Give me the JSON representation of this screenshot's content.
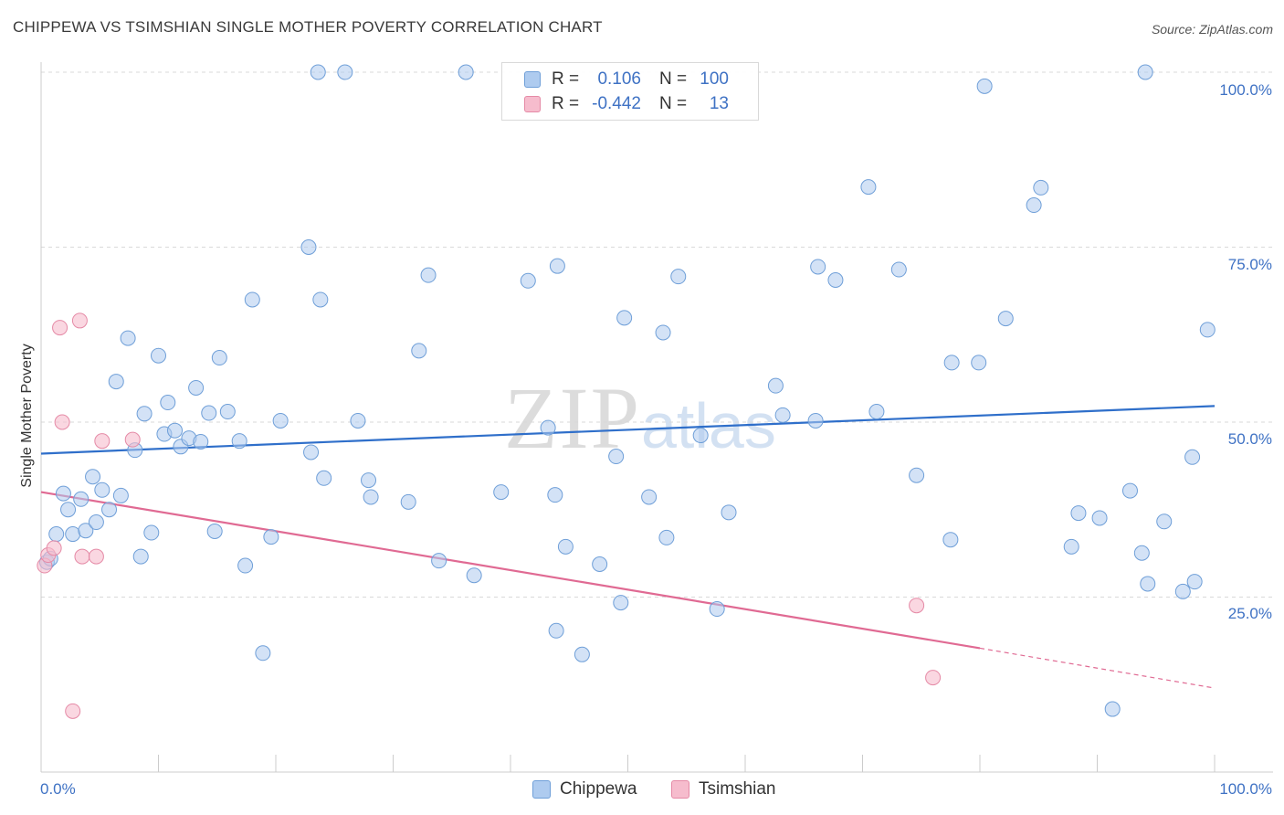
{
  "header": {
    "title": "CHIPPEWA VS TSIMSHIAN SINGLE MOTHER POVERTY CORRELATION CHART",
    "source": "Source: ZipAtlas.com"
  },
  "watermark": {
    "zip": "ZIP",
    "atlas": "atlas"
  },
  "legend": {
    "rows": [
      {
        "r_label": "R =",
        "r_value": "0.106",
        "n_label": "N =",
        "n_value": "100"
      },
      {
        "r_label": "R =",
        "r_value": "-0.442",
        "n_label": "N =",
        "n_value": "13"
      }
    ]
  },
  "bottom_legend": {
    "series_a": "Chippewa",
    "series_b": "Tsimshian"
  },
  "colors": {
    "chippewa_fill": "#aecbef",
    "chippewa_stroke": "#6f9fd8",
    "chippewa_line": "#2f6fca",
    "tsimshian_fill": "#f6bccd",
    "tsimshian_stroke": "#e58aa6",
    "tsimshian_line": "#e06a93",
    "grid": "#d9d9d9",
    "tick_label": "#3f72c4"
  },
  "chart_data": {
    "type": "scatter",
    "title": "CHIPPEWA VS TSIMSHIAN SINGLE MOTHER POVERTY CORRELATION CHART",
    "xlabel": "",
    "ylabel": "Single Mother Poverty",
    "xlim": [
      0,
      100
    ],
    "ylim": [
      0,
      100
    ],
    "x_tick_labels": [
      "0.0%",
      "100.0%"
    ],
    "y_tick_labels": [
      "25.0%",
      "50.0%",
      "75.0%",
      "100.0%"
    ],
    "grid": true,
    "legend_position": "top-center",
    "series": [
      {
        "name": "Chippewa",
        "r": 0.106,
        "n": 100,
        "trend": {
          "x": [
            0,
            100
          ],
          "y": [
            45.5,
            52.3
          ]
        },
        "points": [
          [
            0.5,
            30.0
          ],
          [
            0.8,
            30.5
          ],
          [
            1.3,
            34.0
          ],
          [
            1.9,
            39.8
          ],
          [
            2.3,
            37.5
          ],
          [
            2.7,
            34.0
          ],
          [
            3.4,
            39.0
          ],
          [
            3.8,
            34.5
          ],
          [
            4.4,
            42.2
          ],
          [
            4.7,
            35.7
          ],
          [
            5.2,
            40.3
          ],
          [
            5.8,
            37.5
          ],
          [
            6.4,
            55.8
          ],
          [
            6.8,
            39.5
          ],
          [
            7.4,
            62.0
          ],
          [
            8.0,
            46.0
          ],
          [
            8.5,
            30.8
          ],
          [
            8.8,
            51.2
          ],
          [
            9.4,
            34.2
          ],
          [
            10.0,
            59.5
          ],
          [
            10.5,
            48.3
          ],
          [
            10.8,
            52.8
          ],
          [
            11.4,
            48.8
          ],
          [
            11.9,
            46.5
          ],
          [
            12.6,
            47.7
          ],
          [
            13.2,
            54.9
          ],
          [
            13.6,
            47.2
          ],
          [
            14.3,
            51.3
          ],
          [
            14.8,
            34.4
          ],
          [
            15.2,
            59.2
          ],
          [
            15.9,
            51.5
          ],
          [
            16.9,
            47.3
          ],
          [
            17.4,
            29.5
          ],
          [
            18.0,
            67.5
          ],
          [
            18.9,
            17.0
          ],
          [
            19.6,
            33.6
          ],
          [
            20.4,
            50.2
          ],
          [
            22.8,
            75.0
          ],
          [
            23.0,
            45.7
          ],
          [
            23.6,
            100.0
          ],
          [
            23.8,
            67.5
          ],
          [
            24.1,
            42.0
          ],
          [
            25.9,
            100.0
          ],
          [
            27.0,
            50.2
          ],
          [
            27.9,
            41.7
          ],
          [
            28.1,
            39.3
          ],
          [
            31.3,
            38.6
          ],
          [
            32.2,
            60.2
          ],
          [
            33.0,
            71.0
          ],
          [
            33.9,
            30.2
          ],
          [
            36.9,
            28.1
          ],
          [
            36.2,
            100.0
          ],
          [
            39.2,
            40.0
          ],
          [
            41.5,
            70.2
          ],
          [
            43.2,
            49.2
          ],
          [
            43.8,
            39.6
          ],
          [
            44.0,
            72.3
          ],
          [
            43.9,
            20.2
          ],
          [
            44.7,
            32.2
          ],
          [
            46.1,
            16.8
          ],
          [
            47.6,
            29.7
          ],
          [
            49.0,
            45.1
          ],
          [
            49.7,
            64.9
          ],
          [
            49.4,
            24.2
          ],
          [
            51.8,
            39.3
          ],
          [
            53.0,
            62.8
          ],
          [
            53.3,
            33.5
          ],
          [
            54.3,
            70.8
          ],
          [
            56.2,
            48.1
          ],
          [
            57.6,
            23.3
          ],
          [
            58.6,
            37.1
          ],
          [
            62.6,
            55.2
          ],
          [
            63.2,
            51.0
          ],
          [
            66.0,
            50.2
          ],
          [
            66.2,
            72.2
          ],
          [
            67.7,
            70.3
          ],
          [
            70.5,
            83.6
          ],
          [
            71.2,
            51.5
          ],
          [
            73.1,
            71.8
          ],
          [
            74.6,
            42.4
          ],
          [
            77.5,
            33.2
          ],
          [
            77.6,
            58.5
          ],
          [
            79.9,
            58.5
          ],
          [
            80.4,
            98.0
          ],
          [
            82.2,
            64.8
          ],
          [
            84.6,
            81.0
          ],
          [
            85.2,
            83.5
          ],
          [
            87.8,
            32.2
          ],
          [
            88.4,
            37.0
          ],
          [
            90.2,
            36.3
          ],
          [
            91.3,
            9.0
          ],
          [
            92.8,
            40.2
          ],
          [
            93.8,
            31.3
          ],
          [
            94.1,
            100.0
          ],
          [
            94.3,
            26.9
          ],
          [
            95.7,
            35.8
          ],
          [
            97.3,
            25.8
          ],
          [
            98.1,
            45.0
          ],
          [
            98.3,
            27.2
          ],
          [
            99.4,
            63.2
          ]
        ]
      },
      {
        "name": "Tsimshian",
        "r": -0.442,
        "n": 13,
        "trend": {
          "x": [
            0,
            80
          ],
          "y": [
            40.0,
            17.7
          ]
        },
        "trend_extension": {
          "x": [
            80,
            100
          ],
          "y": [
            17.7,
            12.0
          ]
        },
        "points": [
          [
            0.3,
            29.5
          ],
          [
            0.6,
            31.0
          ],
          [
            1.1,
            32.0
          ],
          [
            1.6,
            63.5
          ],
          [
            1.8,
            50.0
          ],
          [
            2.7,
            8.7
          ],
          [
            3.3,
            64.5
          ],
          [
            3.5,
            30.8
          ],
          [
            4.7,
            30.8
          ],
          [
            5.2,
            47.3
          ],
          [
            7.8,
            47.5
          ],
          [
            74.6,
            23.8
          ],
          [
            76.0,
            13.5
          ]
        ]
      }
    ]
  }
}
